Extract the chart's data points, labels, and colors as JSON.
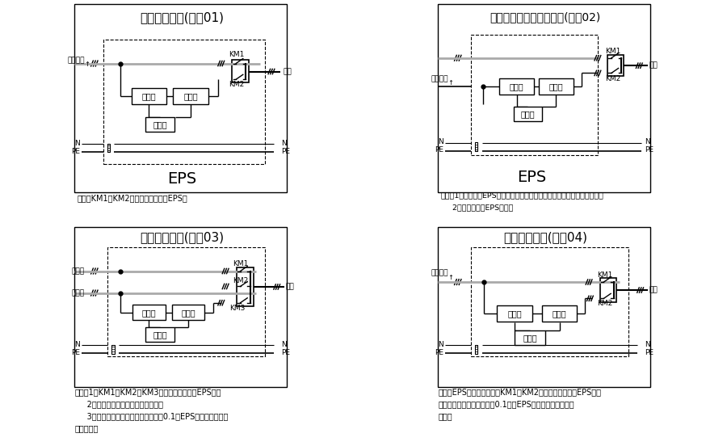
{
  "diagrams": [
    {
      "title": "单电源原理图(编号01)",
      "note_lines": [
        "说明：KM1、KM2为电气机械互锁在EPS内"
      ],
      "type": "single"
    },
    {
      "title": "做第二回路双回路原理图(编号02)",
      "note_lines": [
        "说明：1、此种情况EPS的逆变器在关机状态在无市电时立即开机逆变输出。",
        "     2、互投装置在EPS之外。"
      ],
      "type": "double_ext"
    },
    {
      "title": "双电源原理图(编号03)",
      "note_lines": [
        "说明：1、KM1、KM2、KM3为机械电气互锁在EPS内；",
        "     2、充电器可接在备用或常用电上；",
        "     3、无常用电时，备用电若投入大于0.1秒EPS先投入备用电来",
        "后再退出。"
      ],
      "type": "dual3"
    },
    {
      "title": "双电源原理图(编号04)",
      "note_lines": [
        "说明：EPS相当于第三电源KM1、KM2为机械电气互锁在EPS内无",
        "常用点时备用电若投入大于0.1秒，EPS先投入备用电来后再",
        "退出。"
      ],
      "type": "dual2"
    }
  ],
  "gray": "#aaaaaa",
  "black": "#000000",
  "white": "#ffffff"
}
